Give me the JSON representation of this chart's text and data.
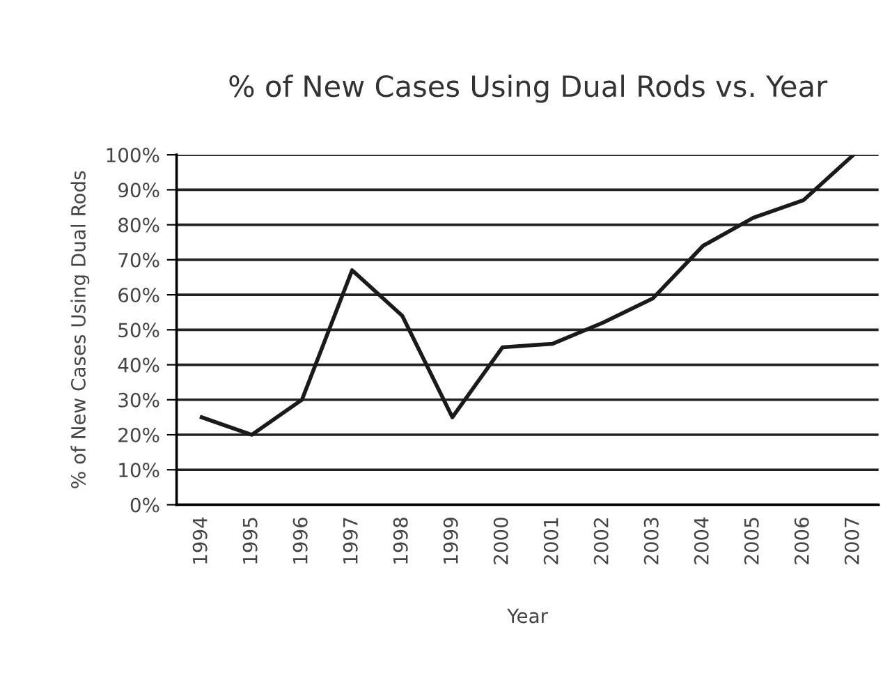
{
  "chart_data": {
    "type": "line",
    "title": "% of New Cases Using Dual Rods vs. Year",
    "xlabel": "Year",
    "ylabel": "% of New Cases Using Dual Rods",
    "categories": [
      "1994",
      "1995",
      "1996",
      "1997",
      "1998",
      "1999",
      "2000",
      "2001",
      "2002",
      "2003",
      "2004",
      "2005",
      "2006",
      "2007"
    ],
    "series": [
      {
        "color": "#1a1a1a",
        "values": [
          25,
          20,
          30,
          67,
          54,
          25,
          45,
          46,
          52,
          59,
          74,
          82,
          87,
          100
        ]
      }
    ],
    "ylim": [
      0,
      100
    ],
    "yticks": [
      {
        "value": 0,
        "label": "0%"
      },
      {
        "value": 10,
        "label": "10%"
      },
      {
        "value": 20,
        "label": "20%"
      },
      {
        "value": 30,
        "label": "30%"
      },
      {
        "value": 40,
        "label": "40%"
      },
      {
        "value": 50,
        "label": "50%"
      },
      {
        "value": 60,
        "label": "60%"
      },
      {
        "value": 70,
        "label": "70%"
      },
      {
        "value": 80,
        "label": "80%"
      },
      {
        "value": 90,
        "label": "90%"
      },
      {
        "value": 100,
        "label": "100%"
      }
    ],
    "grid": "y",
    "line_style": "solid",
    "marker": "none"
  }
}
